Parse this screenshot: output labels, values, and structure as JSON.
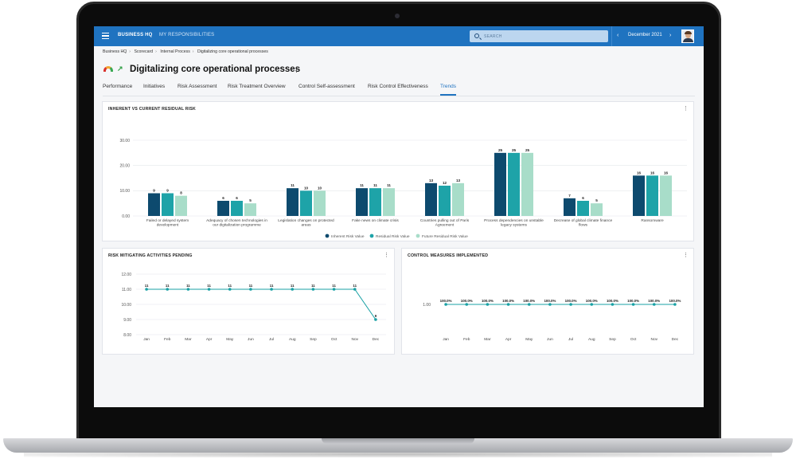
{
  "topbar": {
    "brand": "BUSINESS HQ",
    "nav": "MY RESPONSIBILITIES",
    "search_placeholder": "SEARCH",
    "date": "December 2021",
    "prev": "‹",
    "next": "›"
  },
  "breadcrumb": [
    "Business HQ",
    "Scorecard",
    "Internal Process",
    "Digitalizing core operational processes"
  ],
  "page": {
    "title": "Digitalizing core operational processes",
    "trend_arrow": "↗",
    "menu": "⋮"
  },
  "tabs": [
    "Performance",
    "Initiatives",
    "Risk Assessment",
    "Risk Treatment Overview",
    "Control Self-assessment",
    "Risk Control Effectiveness",
    "Trends"
  ],
  "active_tab": "Trends",
  "cards": {
    "inherent": {
      "title": "INHERENT VS CURRENT RESIDUAL RISK",
      "menu": "⋮"
    },
    "pending": {
      "title": "RISK MITIGATING ACTIVITIES PENDING",
      "menu": "⋮"
    },
    "control": {
      "title": "CONTROL MEASURES IMPLEMENTED",
      "menu": "⋮"
    }
  },
  "colors": {
    "brand": "#1f73c0",
    "inherent": "#0d4a6e",
    "residual": "#1ea3a8",
    "future": "#a8ddc9",
    "line": "#18a0a4"
  },
  "chart_data": [
    {
      "type": "bar",
      "title": "INHERENT VS CURRENT RESIDUAL RISK",
      "categories": [
        [
          "Failed or delayed system",
          "development"
        ],
        [
          "Adequacy of chosen technologies in",
          "our digitalization programme"
        ],
        [
          "Legislation changes on protected",
          "areas"
        ],
        [
          "Fake news on climate crisis"
        ],
        [
          "Countries pulling out of Paris",
          "Agreement"
        ],
        [
          "Process dependencies on unstable",
          "legacy systems"
        ],
        [
          "Decrease of global climate finance",
          "flows"
        ],
        [
          "Ransomware"
        ]
      ],
      "series": [
        {
          "name": "Inherent Risk Value",
          "values": [
            9,
            6,
            11,
            11,
            13,
            25,
            7,
            16
          ]
        },
        {
          "name": "Residual Risk Value",
          "values": [
            9,
            6,
            10,
            11,
            12,
            25,
            6,
            16
          ]
        },
        {
          "name": "Future Residual Risk Value",
          "values": [
            8,
            5,
            10,
            11,
            13,
            25,
            5,
            16
          ]
        }
      ],
      "yticks": [
        "30.00",
        "20.00",
        "10.00",
        "0.00"
      ],
      "ylim": [
        0,
        30
      ],
      "grid": true,
      "legend": "bottom"
    },
    {
      "type": "line",
      "title": "RISK MITIGATING ACTIVITIES PENDING",
      "x": [
        "Jan",
        "Feb",
        "Mar",
        "Apr",
        "May",
        "Jun",
        "Jul",
        "Aug",
        "Sep",
        "Oct",
        "Nov",
        "Dec"
      ],
      "values": [
        11,
        11,
        11,
        11,
        11,
        11,
        11,
        11,
        11,
        11,
        11,
        9
      ],
      "yticks": [
        "12.00",
        "11.00",
        "10.00",
        "9.00",
        "8.00"
      ],
      "ylim": [
        8,
        12
      ],
      "grid": true
    },
    {
      "type": "line",
      "title": "CONTROL MEASURES IMPLEMENTED",
      "x": [
        "Jan",
        "Feb",
        "Mar",
        "Apr",
        "May",
        "Jun",
        "Jul",
        "Aug",
        "Sep",
        "Oct",
        "Nov",
        "Dec"
      ],
      "values": [
        1,
        1,
        1,
        1,
        1,
        1,
        1,
        1,
        1,
        1,
        1,
        1
      ],
      "labels": [
        "100.0%",
        "100.0%",
        "100.0%",
        "100.0%",
        "100.0%",
        "100.0%",
        "100.0%",
        "100.0%",
        "100.0%",
        "100.0%",
        "100.0%",
        "100.0%"
      ],
      "yticks": [
        "1.00"
      ],
      "ylim": [
        0,
        2
      ],
      "grid": false
    }
  ]
}
